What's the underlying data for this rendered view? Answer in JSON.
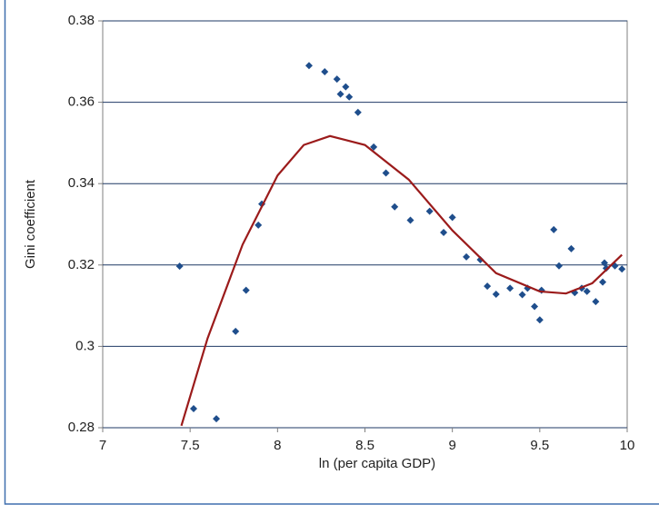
{
  "chart_data": {
    "type": "scatter",
    "xlabel": "ln (per capita GDP)",
    "ylabel": "Gini coefficient",
    "xlim": [
      7,
      10
    ],
    "xticks": [
      7,
      7.5,
      8,
      8.5,
      9,
      9.5,
      10
    ],
    "ylim": [
      0.28,
      0.38
    ],
    "yticks": [
      0.28,
      0.3,
      0.32,
      0.34,
      0.36,
      0.38
    ],
    "grid": true,
    "series": [
      {
        "color": "#1f4e8c",
        "marker": "diamond",
        "x": [
          7.44,
          7.52,
          7.65,
          7.76,
          7.82,
          7.89,
          7.91,
          8.18,
          8.27,
          8.34,
          8.36,
          8.39,
          8.41,
          8.46,
          8.55,
          8.62,
          8.67,
          8.76,
          8.87,
          8.95,
          9.0,
          9.08,
          9.16,
          9.2,
          9.25,
          9.33,
          9.4,
          9.43,
          9.47,
          9.5,
          9.51,
          9.58,
          9.61,
          9.68,
          9.7,
          9.74,
          9.77,
          9.82,
          9.86,
          9.87,
          9.88,
          9.93,
          9.97
        ],
        "values": [
          0.3197,
          0.2847,
          0.2822,
          0.3037,
          0.3138,
          0.3298,
          0.335,
          0.369,
          0.3675,
          0.3657,
          0.362,
          0.3638,
          0.3613,
          0.3575,
          0.349,
          0.3426,
          0.3343,
          0.331,
          0.3332,
          0.328,
          0.3317,
          0.322,
          0.3213,
          0.3148,
          0.3128,
          0.3143,
          0.3127,
          0.3143,
          0.3098,
          0.3065,
          0.3138,
          0.3287,
          0.3198,
          0.324,
          0.3132,
          0.3143,
          0.3135,
          0.311,
          0.3158,
          0.3205,
          0.3192,
          0.3198,
          0.319
        ]
      },
      {
        "color": "#9b1b1b",
        "line": true,
        "x": [
          7.45,
          7.6,
          7.8,
          8.0,
          8.15,
          8.3,
          8.5,
          8.75,
          9.0,
          9.25,
          9.5,
          9.65,
          9.8,
          9.97
        ],
        "values": [
          0.2805,
          0.302,
          0.325,
          0.342,
          0.3495,
          0.3517,
          0.3495,
          0.341,
          0.3285,
          0.318,
          0.3135,
          0.313,
          0.3155,
          0.3225
        ]
      }
    ]
  }
}
